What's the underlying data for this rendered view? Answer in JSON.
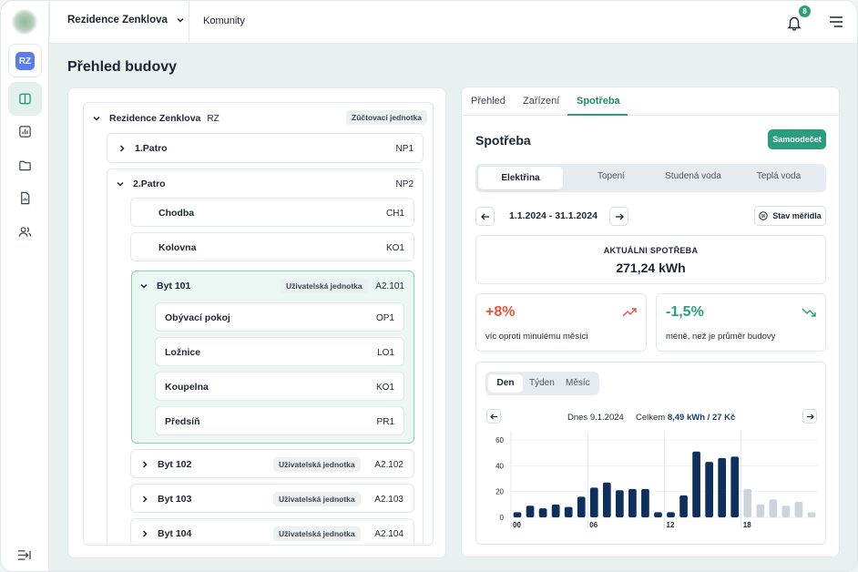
{
  "sidebar": {
    "org_initials": "RZ",
    "items": [
      {
        "icon": "layout-icon",
        "active": true
      },
      {
        "icon": "chart-icon",
        "active": false
      },
      {
        "icon": "folder-icon",
        "active": false
      },
      {
        "icon": "document-icon",
        "active": false
      },
      {
        "icon": "users-icon",
        "active": false
      }
    ],
    "bottom_icon": "collapse-icon"
  },
  "header": {
    "building": "Rezidence Zenklova",
    "communities": "Komunity",
    "notifications": "8"
  },
  "page_title": "Přehled budovy",
  "tree": {
    "root": {
      "name": "Rezidence Zenklova",
      "code": "RZ",
      "badge": "Zúčtovací jednotka"
    },
    "floor1": {
      "name": "1.Patro",
      "code": "NP1"
    },
    "floor2": {
      "name": "2.Patro",
      "code": "NP2"
    },
    "chodba": {
      "name": "Chodba",
      "code": "CH1"
    },
    "kolovna": {
      "name": "Kolovna",
      "code": "KO1"
    },
    "byt101": {
      "name": "Byt 101",
      "badge": "Uživatelská jednotka",
      "code": "A2.101"
    },
    "rooms": [
      {
        "name": "Obývací pokoj",
        "code": "OP1"
      },
      {
        "name": "Ložnice",
        "code": "LO1"
      },
      {
        "name": "Koupelna",
        "code": "KO1"
      },
      {
        "name": "Předsíň",
        "code": "PR1"
      }
    ],
    "byt102": {
      "name": "Byt 102",
      "badge": "Uživatelská jednotka",
      "code": "A2.102"
    },
    "byt103": {
      "name": "Byt 103",
      "badge": "Uživatelská jednotka",
      "code": "A2.103"
    },
    "byt104": {
      "name": "Byt 104",
      "badge": "Uživatelská jednotka",
      "code": "A2.104"
    }
  },
  "detail": {
    "tabs": [
      "Přehled",
      "Zařízení",
      "Spotřeba"
    ],
    "title": "Spotřeba",
    "self_read": "Samoodečet",
    "media": [
      "Elektřina",
      "Topení",
      "Studená voda",
      "Teplá voda"
    ],
    "date_range": "1.1.2024 - 31.1.2024",
    "meter_state": "Stav měřidla",
    "current_label": "AKTUÁLNI SPOTŘEBA",
    "current_value": "271,24 kWh",
    "stat1_value": "+8%",
    "stat1_text": "víc oproti minulému měsíci",
    "stat2_value": "-1,5%",
    "stat2_text": "méně, než je průměr budovy",
    "periods": [
      "Den",
      "Týden",
      "Měsíc"
    ],
    "day_label": "Dnes 9.1.2024",
    "total_label": "Celkem",
    "total_value": "8,49 kWh / 27 Kč"
  },
  "colors": {
    "accent": "#2a9d7c",
    "bar_dark": "#0f2f5c",
    "bar_light": "#cdd5dc",
    "up": "#e5533d",
    "down": "#2a9d7c"
  },
  "chart_data": {
    "type": "bar",
    "title": "",
    "xlabel": "",
    "ylabel": "",
    "ylim": [
      0,
      60
    ],
    "yticks": [
      "0",
      "20",
      "40",
      "60"
    ],
    "xticks": [
      "00",
      "06",
      "12",
      "18"
    ],
    "categories": [
      "0",
      "1",
      "2",
      "3",
      "4",
      "5",
      "6",
      "7",
      "8",
      "9",
      "10",
      "11",
      "12",
      "13",
      "14",
      "15",
      "16",
      "17",
      "18",
      "19",
      "20",
      "21",
      "22",
      "23"
    ],
    "values": [
      4,
      9,
      7,
      10,
      8,
      16,
      23,
      27,
      21,
      22,
      22,
      4,
      4,
      17,
      51,
      43,
      46,
      47,
      22,
      10,
      14,
      9,
      12,
      4
    ],
    "measured_until_index": 17
  }
}
